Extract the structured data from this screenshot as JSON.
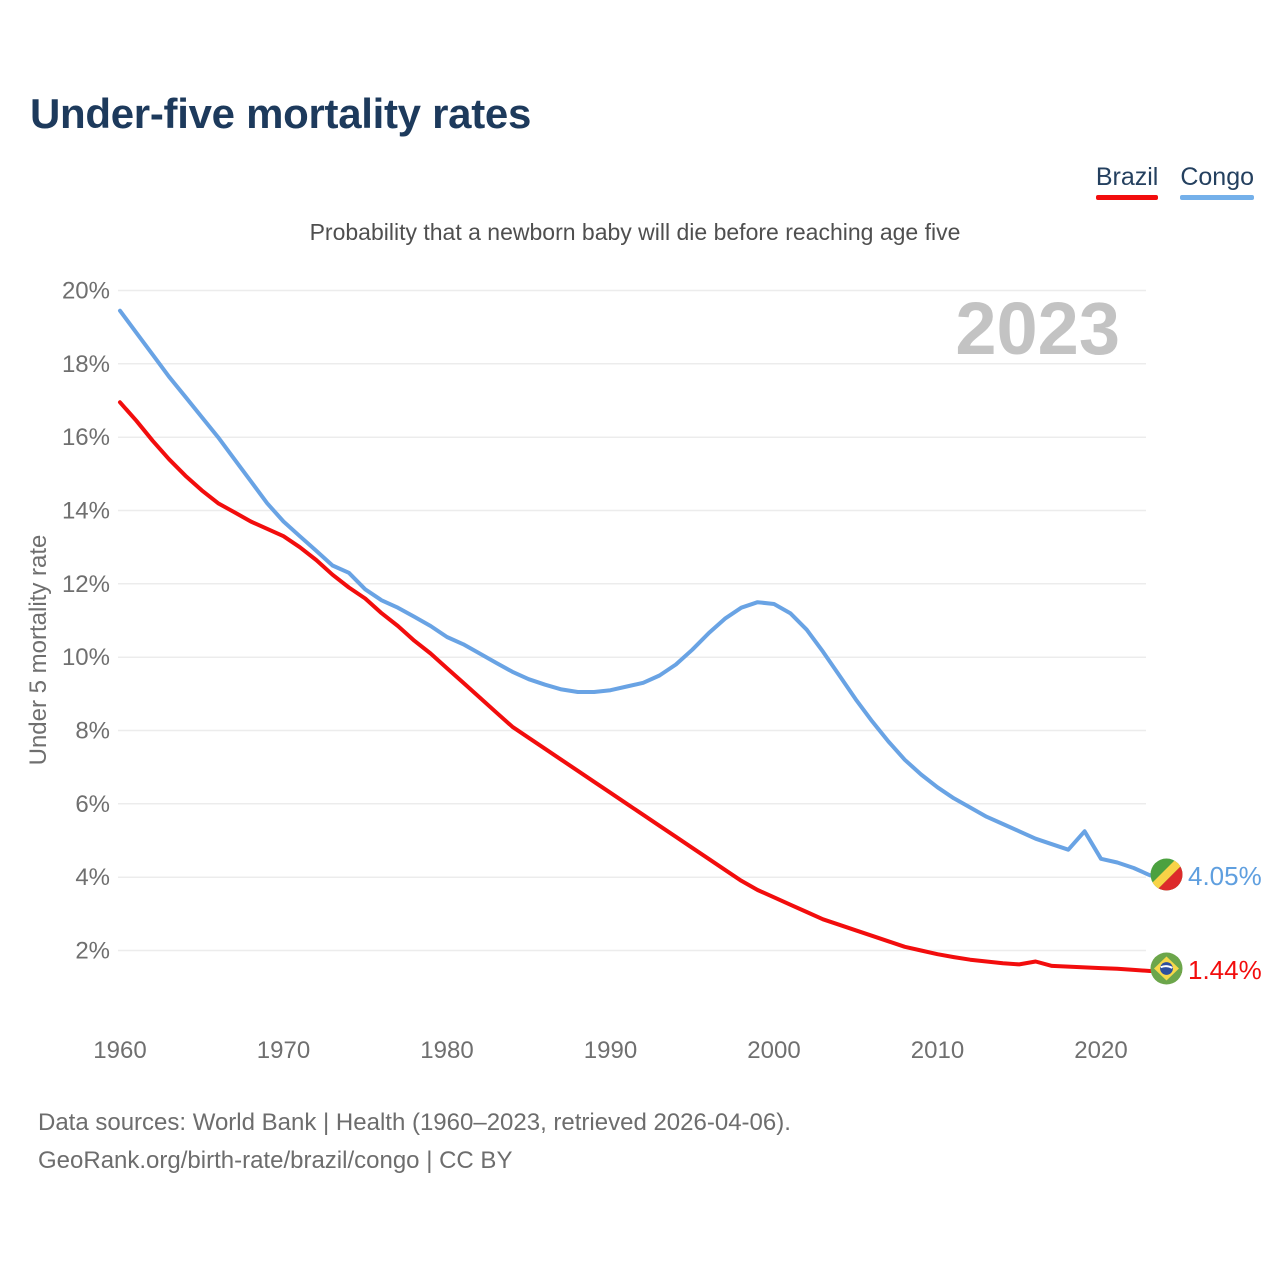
{
  "header": {
    "title": "Under-five mortality rates"
  },
  "subtitle": "Probability that a newborn baby will die before reaching age five",
  "watermark": "2023",
  "legend": {
    "items": [
      {
        "label": "Brazil",
        "color": "#f20d0d"
      },
      {
        "label": "Congo",
        "color": "#74b0ea"
      }
    ]
  },
  "end_labels": [
    {
      "series": "Congo",
      "label": "4.05%",
      "color": "#5f9fdf",
      "flag_icon": "congo-flag"
    },
    {
      "series": "Brazil",
      "label": "1.44%",
      "color": "#f20d0d",
      "flag_icon": "brazil-flag"
    }
  ],
  "footer": {
    "line1": "Data sources: World Bank | Health (1960–2023, retrieved 2026-04-06).",
    "line2": "GeoRank.org/birth-rate/brazil/congo | CC BY"
  },
  "chart_data": {
    "type": "line",
    "title": "Under-five mortality rates",
    "subtitle": "Probability that a newborn baby will die before reaching age five",
    "xlabel": "",
    "ylabel": "Under 5 mortality rate",
    "x_ticks": [
      1960,
      1970,
      1980,
      1990,
      2000,
      2010,
      2020
    ],
    "y_ticks": [
      2,
      4,
      6,
      8,
      10,
      12,
      14,
      16,
      18,
      20
    ],
    "y_tick_suffix": "%",
    "ylim": [
      0.9,
      20.5
    ],
    "grid": "horizontal",
    "legend_position": "top-right",
    "x": [
      1960,
      1961,
      1962,
      1963,
      1964,
      1965,
      1966,
      1967,
      1968,
      1969,
      1970,
      1971,
      1972,
      1973,
      1974,
      1975,
      1976,
      1977,
      1978,
      1979,
      1980,
      1981,
      1982,
      1983,
      1984,
      1985,
      1986,
      1987,
      1988,
      1989,
      1990,
      1991,
      1992,
      1993,
      1994,
      1995,
      1996,
      1997,
      1998,
      1999,
      2000,
      2001,
      2002,
      2003,
      2004,
      2005,
      2006,
      2007,
      2008,
      2009,
      2010,
      2011,
      2012,
      2013,
      2014,
      2015,
      2016,
      2017,
      2018,
      2019,
      2020,
      2021,
      2022,
      2023
    ],
    "series": [
      {
        "name": "Brazil",
        "color": "#f20d0d",
        "end_label": "1.44%",
        "values": [
          16.95,
          16.45,
          15.9,
          15.4,
          14.95,
          14.55,
          14.2,
          13.95,
          13.7,
          13.5,
          13.3,
          13.0,
          12.65,
          12.25,
          11.9,
          11.6,
          11.2,
          10.85,
          10.45,
          10.1,
          9.7,
          9.3,
          8.9,
          8.5,
          8.1,
          7.8,
          7.5,
          7.2,
          6.9,
          6.6,
          6.3,
          6.0,
          5.7,
          5.4,
          5.1,
          4.8,
          4.5,
          4.2,
          3.9,
          3.65,
          3.45,
          3.25,
          3.05,
          2.85,
          2.7,
          2.55,
          2.4,
          2.25,
          2.1,
          2.0,
          1.9,
          1.82,
          1.75,
          1.7,
          1.65,
          1.62,
          1.7,
          1.58,
          1.56,
          1.54,
          1.52,
          1.5,
          1.47,
          1.44
        ]
      },
      {
        "name": "Congo",
        "color": "#69a3e4",
        "end_label": "4.05%",
        "values": [
          19.45,
          18.85,
          18.25,
          17.65,
          17.1,
          16.55,
          16.0,
          15.4,
          14.8,
          14.2,
          13.7,
          13.3,
          12.9,
          12.5,
          12.3,
          11.85,
          11.55,
          11.35,
          11.1,
          10.85,
          10.55,
          10.35,
          10.1,
          9.85,
          9.6,
          9.4,
          9.25,
          9.12,
          9.05,
          9.05,
          9.1,
          9.2,
          9.3,
          9.5,
          9.8,
          10.2,
          10.65,
          11.05,
          11.35,
          11.5,
          11.45,
          11.2,
          10.75,
          10.15,
          9.5,
          8.85,
          8.25,
          7.7,
          7.2,
          6.8,
          6.45,
          6.15,
          5.9,
          5.65,
          5.45,
          5.25,
          5.05,
          4.9,
          4.75,
          5.25,
          4.5,
          4.4,
          4.25,
          4.05
        ]
      }
    ]
  }
}
